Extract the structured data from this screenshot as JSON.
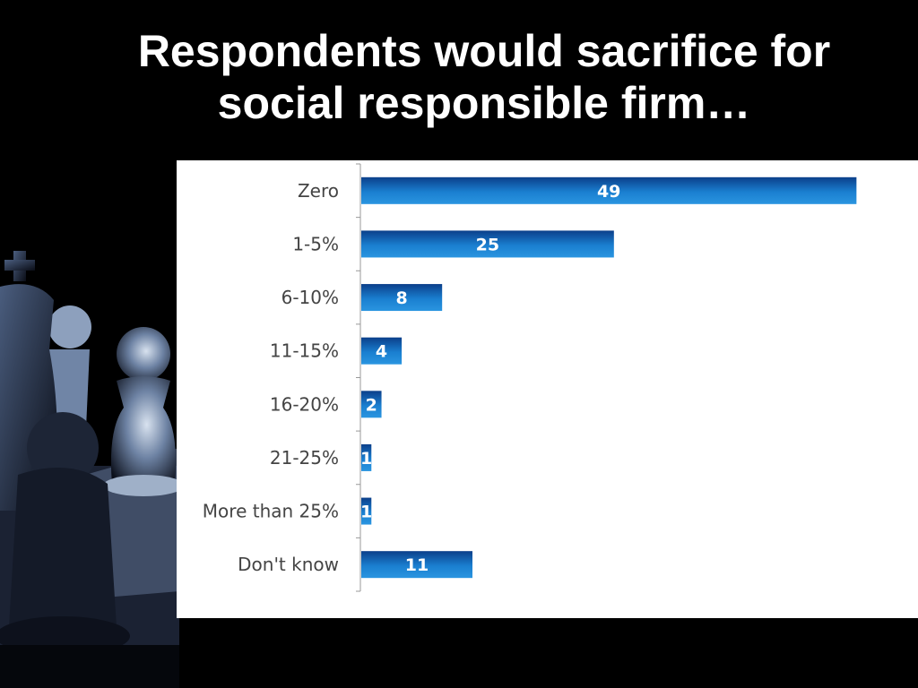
{
  "slide": {
    "title_line1": "Respondents would sacrifice for",
    "title_line2": "social responsible firm…"
  },
  "colors": {
    "background": "#000000",
    "bar_top": "#0b3f8a",
    "bar_mid": "#1a7fd0",
    "bar_bottom": "#2a95e0",
    "panel": "#ffffff"
  },
  "decoration": {
    "background_art": "chess-pieces"
  },
  "chart_data": {
    "type": "bar",
    "orientation": "horizontal",
    "categories": [
      "Zero",
      "1-5%",
      "6-10%",
      "11-15%",
      "16-20%",
      "21-25%",
      "More than 25%",
      "Don't know"
    ],
    "values": [
      49,
      25,
      8,
      4,
      2,
      1,
      1,
      11
    ],
    "xlim": [
      0,
      55
    ],
    "grid": false,
    "data_labels": true
  }
}
